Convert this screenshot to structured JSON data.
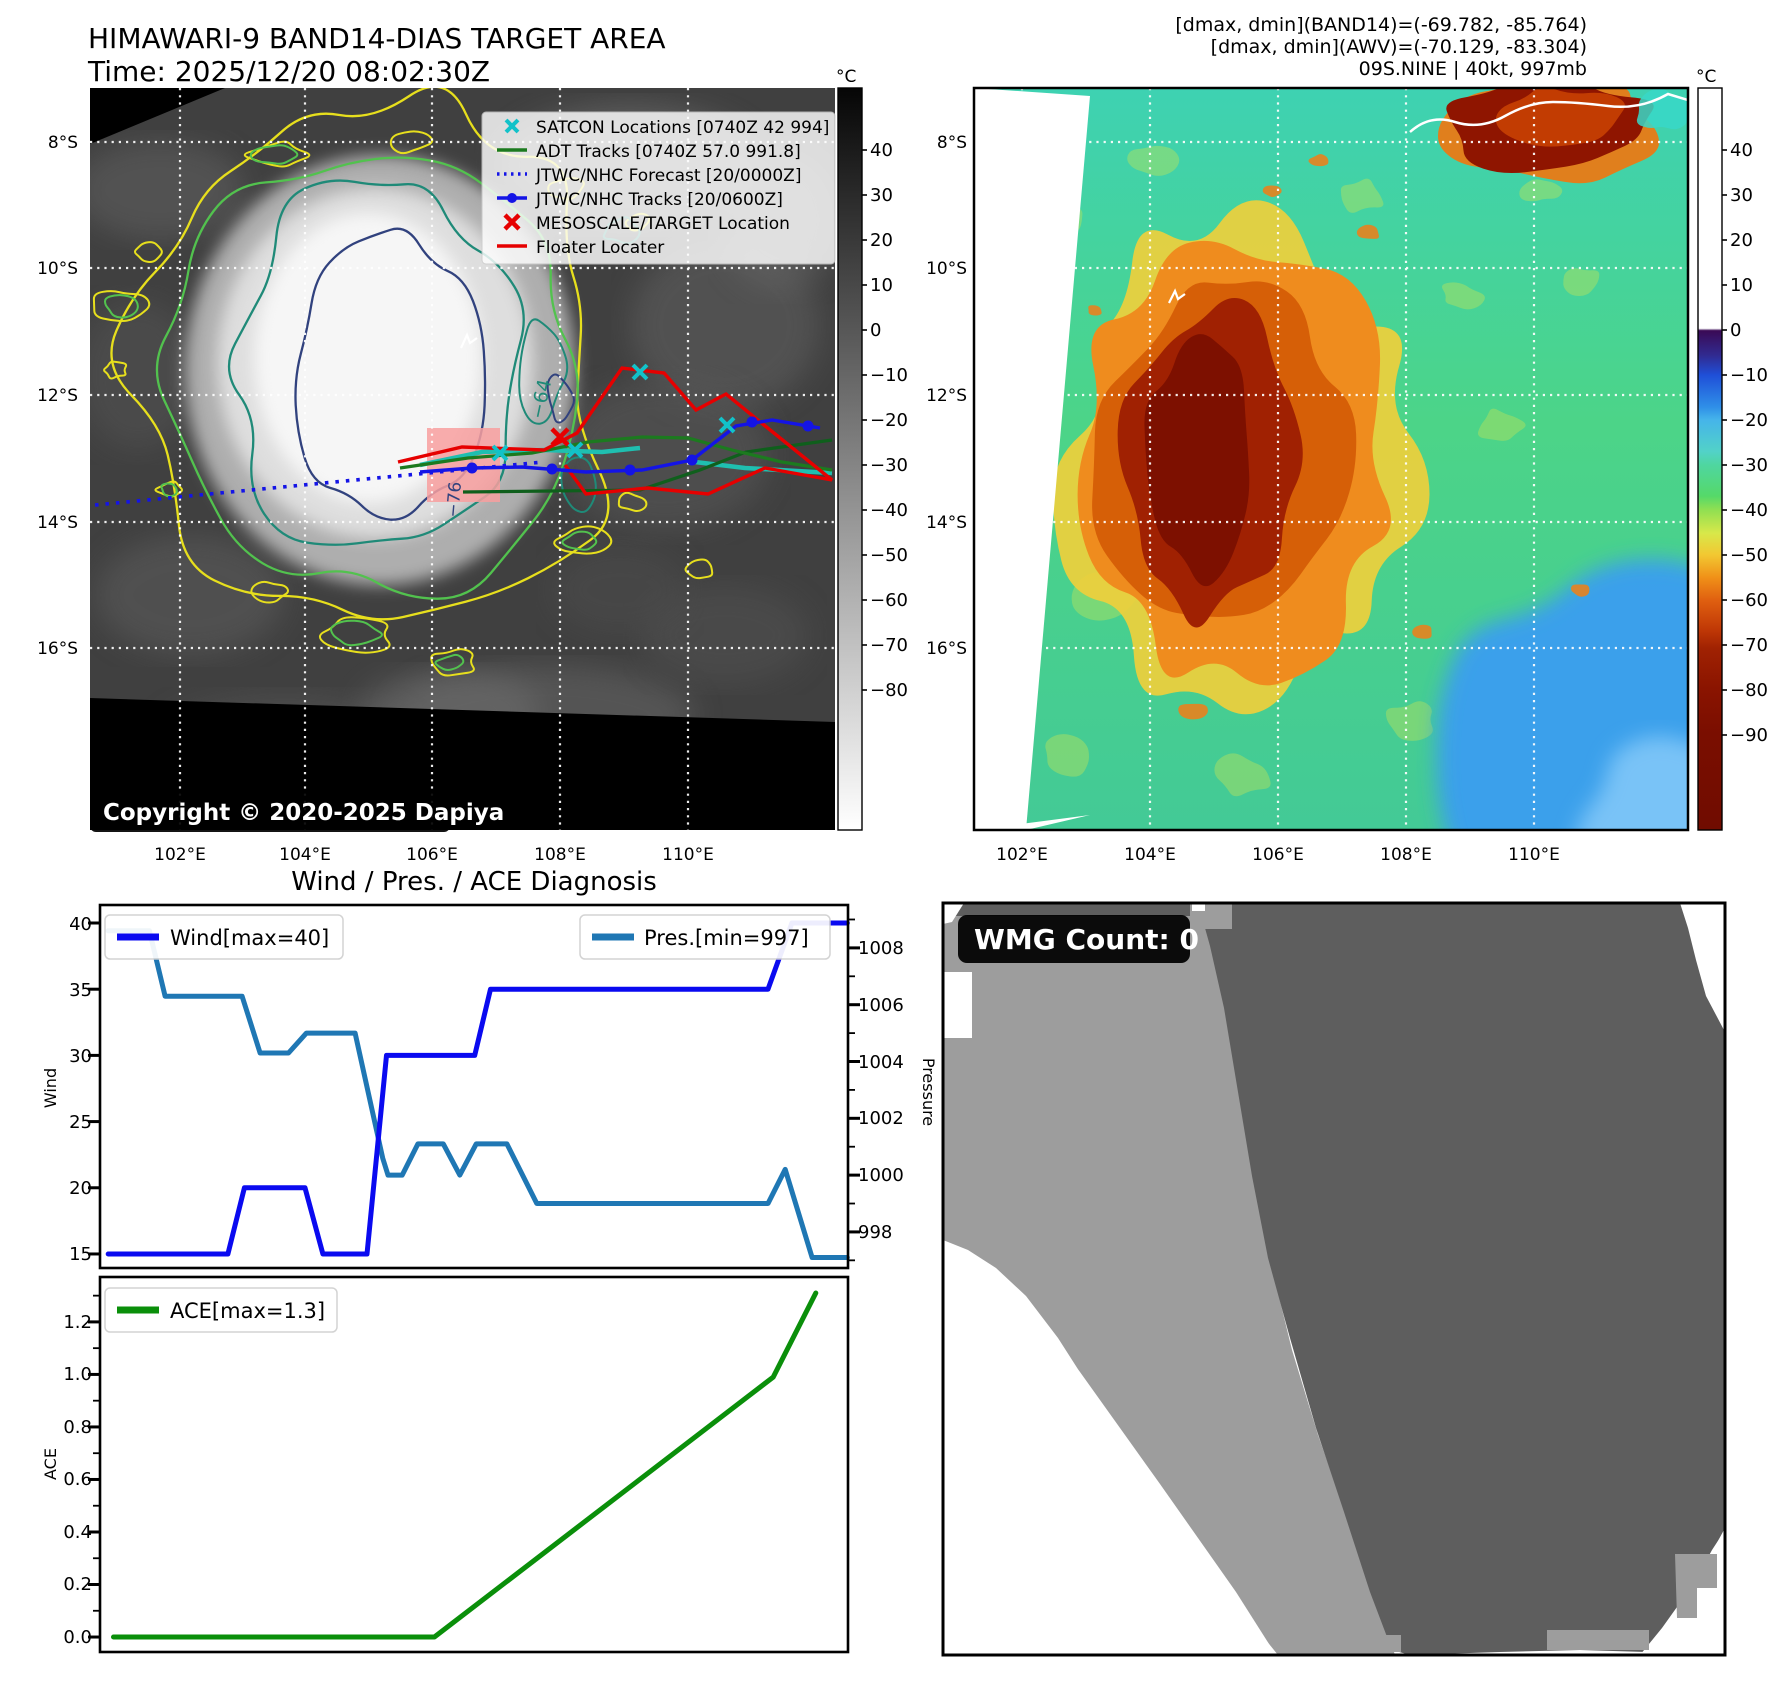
{
  "header": {
    "title": "HIMAWARI-9 BAND14-DIAS TARGET AREA",
    "time_line": "Time: 2025/12/20 08:02:30Z",
    "info_lines": [
      "[dmax, dmin](BAND14)=(-69.782, -85.764)",
      "[dmax, dmin](AWV)=(-70.129, -83.304)",
      "09S.NINE | 40kt, 997mb"
    ]
  },
  "left_map": {
    "legend_items": [
      {
        "label": "SATCON Locations [0740Z 42 994]",
        "marker": "cyan-x",
        "color": "#12c2c9"
      },
      {
        "label": "ADT Tracks [0740Z 57.0 991.8]",
        "marker": "line",
        "color": "#1c7a1f"
      },
      {
        "label": "JTWC/NHC Forecast [20/0000Z]",
        "marker": "dotted-line",
        "color": "#1414e6"
      },
      {
        "label": "JTWC/NHC Tracks [20/0600Z]",
        "marker": "line-dot",
        "color": "#1414e6"
      },
      {
        "label": "MESOSCALE/TARGET Location",
        "marker": "red-x",
        "color": "#e60000"
      },
      {
        "label": "Floater Locater",
        "marker": "line",
        "color": "#e60000"
      }
    ],
    "copyright": "Copyright © 2020-2025 Dapiya",
    "lat_ticks": [
      "8°S",
      "10°S",
      "12°S",
      "14°S",
      "16°S"
    ],
    "lon_ticks": [
      "102°E",
      "104°E",
      "106°E",
      "108°E",
      "110°E"
    ],
    "colorbar": {
      "unit": "°C",
      "ticks": [
        "40",
        "30",
        "20",
        "10",
        "0",
        "−10",
        "−20",
        "−30",
        "−40",
        "−50",
        "−60",
        "−70",
        "−80"
      ]
    },
    "contour_labels": [
      "−64",
      "−76"
    ]
  },
  "right_map": {
    "lat_ticks": [
      "8°S",
      "10°S",
      "12°S",
      "14°S",
      "16°S"
    ],
    "lon_ticks": [
      "102°E",
      "104°E",
      "106°E",
      "108°E",
      "110°E"
    ],
    "colorbar": {
      "unit": "°C",
      "ticks": [
        "40",
        "30",
        "20",
        "10",
        "0",
        "−10",
        "−20",
        "−30",
        "−40",
        "−50",
        "−60",
        "−70",
        "−80",
        "−90"
      ]
    }
  },
  "wmg": {
    "label": "WMG Count: 0"
  },
  "chart_data": [
    {
      "type": "line",
      "title": "Wind / Pres. / ACE Diagnosis",
      "ylabel_left": "Wind",
      "ylabel_right": "Pressure",
      "xlim": [
        0,
        1
      ],
      "ylim_left": [
        13.94,
        41.36
      ],
      "ylim_right": [
        996.73,
        1009.51
      ],
      "yticks_left": {
        "values": [
          40,
          35,
          30,
          25,
          20,
          15
        ],
        "labels": [
          "40",
          "35",
          "30",
          "25",
          "20",
          "15"
        ]
      },
      "yticks_right": {
        "values": [
          1008,
          1006,
          1004,
          1002,
          1000,
          998
        ],
        "labels": [
          "1008",
          "1006",
          "1004",
          "1002",
          "1000",
          "998"
        ]
      },
      "grid": false,
      "legend_position": "upper-left-and-upper-right",
      "series": [
        {
          "name": "Wind[max=40]",
          "axis": "left",
          "color": "#0a0af0",
          "points": [
            [
              0.011,
              15
            ],
            [
              0.171,
              15
            ],
            [
              0.193,
              20
            ],
            [
              0.274,
              20
            ],
            [
              0.298,
              15
            ],
            [
              0.357,
              15
            ],
            [
              0.383,
              30
            ],
            [
              0.501,
              30
            ],
            [
              0.522,
              35
            ],
            [
              0.893,
              35
            ],
            [
              0.925,
              40
            ],
            [
              0.999,
              40
            ]
          ]
        },
        {
          "name": "Pres.[min=997]",
          "axis": "right",
          "color": "#1f77b4",
          "points": [
            [
              0.011,
              1008.6
            ],
            [
              0.066,
              1008.6
            ],
            [
              0.087,
              1006.3
            ],
            [
              0.19,
              1006.3
            ],
            [
              0.214,
              1004.3
            ],
            [
              0.252,
              1004.3
            ],
            [
              0.276,
              1005.0
            ],
            [
              0.341,
              1005.0
            ],
            [
              0.378,
              1000.6
            ],
            [
              0.385,
              1000.0
            ],
            [
              0.404,
              1000.0
            ],
            [
              0.425,
              1001.1
            ],
            [
              0.459,
              1001.1
            ],
            [
              0.481,
              1000.0
            ],
            [
              0.503,
              1001.1
            ],
            [
              0.544,
              1001.1
            ],
            [
              0.584,
              999.0
            ],
            [
              0.893,
              999.0
            ],
            [
              0.916,
              1000.2
            ],
            [
              0.952,
              997.1
            ],
            [
              0.999,
              997.1
            ]
          ]
        }
      ]
    },
    {
      "type": "line",
      "ylabel": "ACE",
      "xlim": [
        0,
        1
      ],
      "ylim": [
        -0.057,
        1.371
      ],
      "yticks": {
        "values": [
          1.2,
          1.0,
          0.8,
          0.6,
          0.4,
          0.2,
          0.0
        ],
        "labels": [
          "1.2",
          "1.0",
          "0.8",
          "0.6",
          "0.4",
          "0.2",
          "0.0"
        ]
      },
      "grid": false,
      "legend_position": "upper-left",
      "series": [
        {
          "name": "ACE[max=1.3]",
          "color": "#0a8f0a",
          "points": [
            [
              0.018,
              0.0
            ],
            [
              0.447,
              0.0
            ],
            [
              0.9,
              0.99
            ],
            [
              0.957,
              1.31
            ]
          ]
        }
      ]
    }
  ]
}
